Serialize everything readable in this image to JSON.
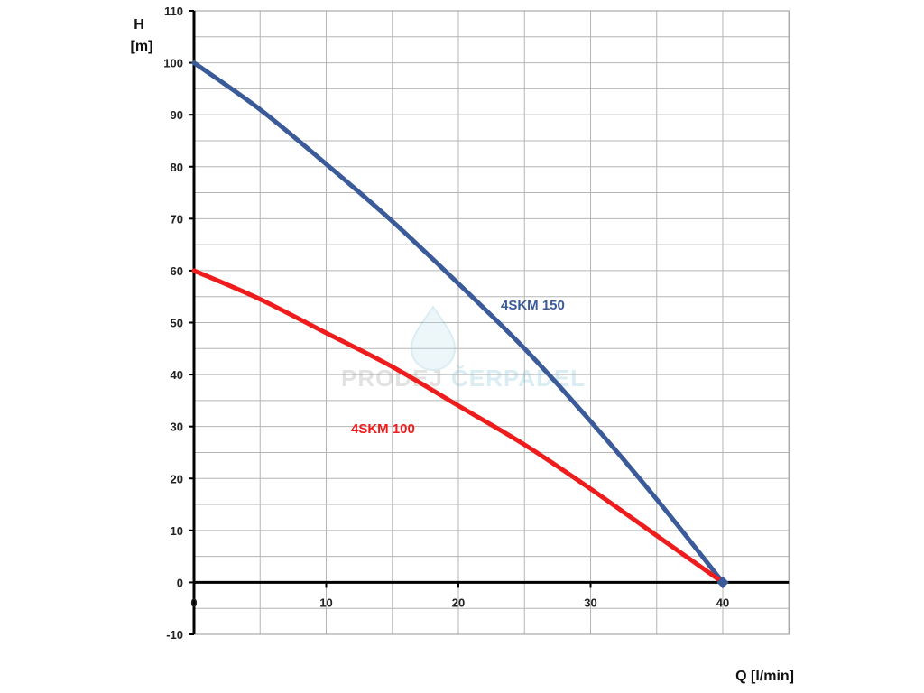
{
  "chart_data": {
    "type": "line",
    "title": "",
    "xlabel": "Q [l/min]",
    "ylabel_line1": "H",
    "ylabel_line2": "[m]",
    "xlim": [
      0,
      45
    ],
    "ylim": [
      -10,
      110
    ],
    "x_ticks": [
      "0",
      "10",
      "20",
      "30",
      "40"
    ],
    "x_tick_values": [
      0,
      10,
      20,
      30,
      40
    ],
    "y_ticks": [
      "110",
      "100",
      "90",
      "80",
      "70",
      "60",
      "50",
      "40",
      "30",
      "20",
      "10",
      "0",
      "-10"
    ],
    "y_tick_values": [
      110,
      100,
      90,
      80,
      70,
      60,
      50,
      40,
      30,
      20,
      10,
      0,
      -10
    ],
    "minor_grid_x_step": 5,
    "minor_grid_y_step": 5,
    "grid": true,
    "series": [
      {
        "name": "4SKM 150",
        "color": "#3a5a9a",
        "x": [
          0,
          5,
          10,
          15,
          20,
          25,
          30,
          35,
          40
        ],
        "y": [
          100,
          91,
          80.5,
          69.5,
          57.5,
          45,
          31,
          16,
          0
        ]
      },
      {
        "name": "4SKM 100",
        "color": "#ee1c1c",
        "x": [
          0,
          5,
          10,
          15,
          20,
          25,
          30,
          35,
          40
        ],
        "y": [
          60,
          54.5,
          48,
          41.5,
          34,
          26.5,
          18,
          9,
          0
        ]
      }
    ],
    "watermark": {
      "part1": "PRODEJ",
      "part2": "ČERPADEL"
    }
  }
}
